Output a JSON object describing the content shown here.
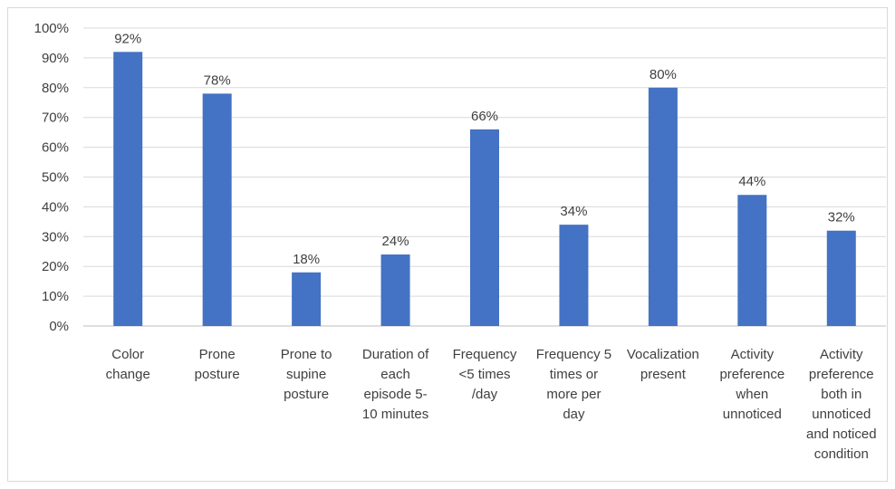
{
  "chart_data": {
    "type": "bar",
    "title": "",
    "xlabel": "",
    "ylabel": "",
    "ylim": [
      0,
      100
    ],
    "y_ticks": [
      "0%",
      "10%",
      "20%",
      "30%",
      "40%",
      "50%",
      "60%",
      "70%",
      "80%",
      "90%",
      "100%"
    ],
    "grid": true,
    "legend": "none",
    "bar_color": "#4472C4",
    "gridline_color": "#d9d9d9",
    "categories": [
      [
        "Color",
        "change"
      ],
      [
        "Prone",
        "posture"
      ],
      [
        "Prone to",
        "supine",
        "posture"
      ],
      [
        "Duration of",
        "each",
        "episode 5-",
        "10 minutes"
      ],
      [
        "Frequency",
        "<5 times",
        "/day"
      ],
      [
        "Frequency 5",
        "times or",
        "more per",
        "day"
      ],
      [
        "Vocalization",
        "present"
      ],
      [
        "Activity",
        "preference",
        "when",
        "unnoticed"
      ],
      [
        "Activity",
        "preference",
        "both in",
        "unnoticed",
        "and noticed",
        "condition"
      ]
    ],
    "values": [
      92,
      78,
      18,
      24,
      66,
      34,
      80,
      44,
      32
    ],
    "data_labels": [
      "92%",
      "78%",
      "18%",
      "24%",
      "66%",
      "34%",
      "80%",
      "44%",
      "32%"
    ]
  }
}
